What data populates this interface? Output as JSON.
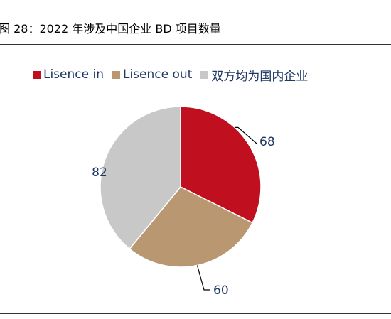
{
  "figure": {
    "title": "图 28：2022 年涉及中国企业 BD 项目数量"
  },
  "chart_data": {
    "type": "pie",
    "title": "",
    "categories": [
      "Lisence in",
      "Lisence out",
      "双方均为国内企业"
    ],
    "values": [
      68,
      60,
      82
    ],
    "colors": [
      "#c00f1f",
      "#b99770",
      "#c8c8c8"
    ],
    "legend_position": "top",
    "start_angle": "12 o'clock",
    "direction": "clockwise",
    "data_labels": [
      "68",
      "60",
      "82"
    ]
  }
}
